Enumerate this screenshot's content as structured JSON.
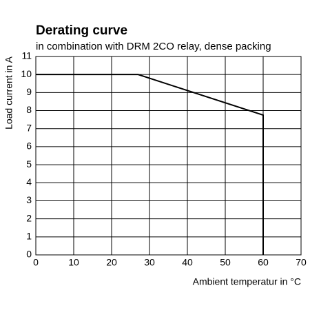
{
  "chart_data": {
    "type": "line",
    "title": "Derating curve",
    "subtitle": "in combination with DRM 2CO relay, dense packing",
    "x_label": "Ambient temperatur in °C",
    "y_label": "Load  current in A",
    "x": [
      0,
      27,
      60,
      60
    ],
    "series": [
      {
        "color": "#000000",
        "values": [
          10,
          10,
          7.75,
          0
        ]
      }
    ],
    "xlim": [
      0,
      70
    ],
    "xticks": [
      0,
      10,
      20,
      30,
      40,
      50,
      60,
      70
    ],
    "ylim": [
      0,
      11
    ],
    "yticks": [
      0,
      1,
      2,
      3,
      4,
      5,
      6,
      7,
      8,
      9,
      10,
      11
    ],
    "grid": true
  }
}
